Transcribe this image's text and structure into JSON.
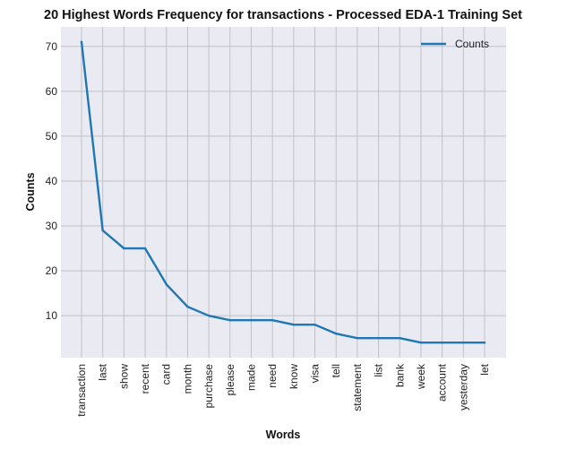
{
  "chart_data": {
    "type": "line",
    "title": "20 Highest Words Frequency for transactions - Processed EDA-1 Training Set",
    "xlabel": "Words",
    "ylabel": "Counts",
    "categories": [
      "transaction",
      "last",
      "show",
      "recent",
      "card",
      "month",
      "purchase",
      "please",
      "made",
      "need",
      "know",
      "visa",
      "tell",
      "statement",
      "list",
      "bank",
      "week",
      "account",
      "yesterday",
      "let"
    ],
    "series": [
      {
        "name": "Counts",
        "values": [
          71,
          29,
          25,
          25,
          17,
          12,
          10,
          9,
          9,
          9,
          8,
          8,
          6,
          5,
          5,
          5,
          4,
          4,
          4,
          4
        ],
        "color": "#1f77b4"
      }
    ],
    "ylim": [
      0.65,
      74.35
    ],
    "yticks": [
      10,
      20,
      30,
      40,
      50,
      60,
      70
    ],
    "grid": true,
    "legend_position": "top-right",
    "background_color": "#eaeaf2",
    "grid_color": "#c0c0c8"
  }
}
